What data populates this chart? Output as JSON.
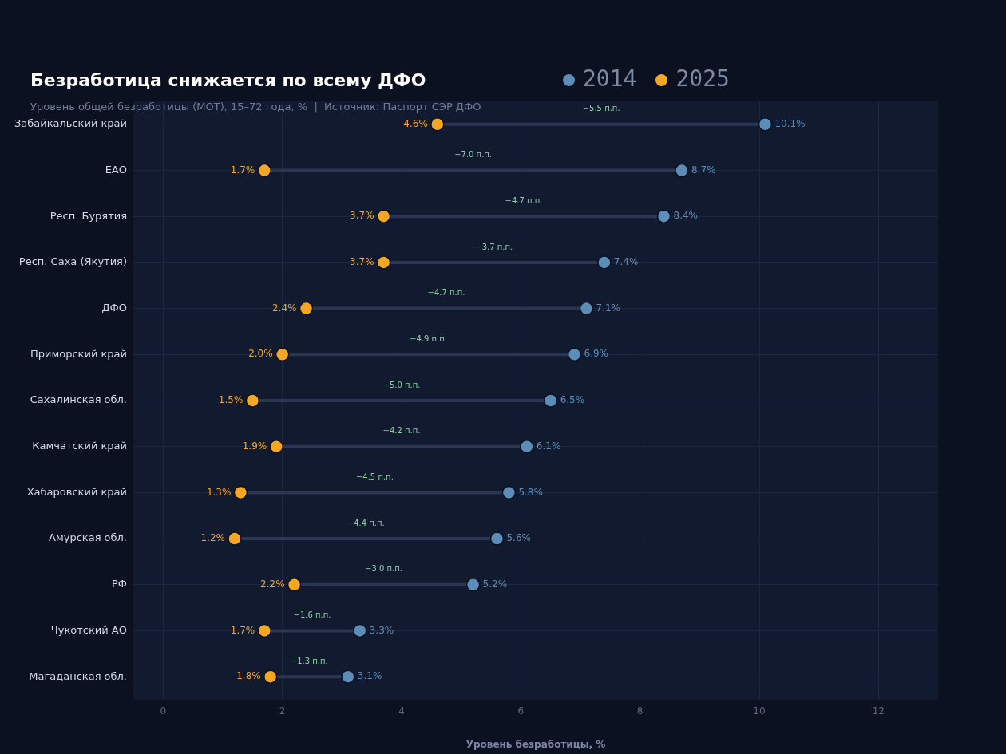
{
  "chart_data": {
    "type": "scatter",
    "orientation": "horizontal",
    "title": "Безработица снижается по всему ДФО",
    "subtitle": "Уровень общей безработицы (МОТ), 15–72 года, %  |  Источник: Паспорт СЭР ДФО",
    "xlabel": "Уровень безработицы, %",
    "categories": [
      "Забайкальский край",
      "ЕАО",
      "Респ. Бурятия",
      "Респ. Саха (Якутия)",
      "ДФО",
      "Приморский край",
      "Сахалинская обл.",
      "Камчатский край",
      "Хабаровский край",
      "Амурская обл.",
      "РФ",
      "Чукотский АО",
      "Магаданская обл."
    ],
    "series": [
      {
        "name": "2014",
        "color": "#5b8db8",
        "values": [
          10.1,
          8.7,
          8.4,
          7.4,
          7.1,
          6.9,
          6.5,
          6.1,
          5.8,
          5.6,
          5.2,
          3.3,
          3.1
        ],
        "value_labels": [
          "10.1%",
          "8.7%",
          "8.4%",
          "7.4%",
          "7.1%",
          "6.9%",
          "6.5%",
          "6.1%",
          "5.8%",
          "5.6%",
          "5.2%",
          "3.3%",
          "3.1%"
        ]
      },
      {
        "name": "2025",
        "color": "#f5a623",
        "values": [
          4.6,
          1.7,
          3.7,
          3.7,
          2.4,
          2.0,
          1.5,
          1.9,
          1.3,
          1.2,
          2.2,
          1.7,
          1.8
        ],
        "value_labels": [
          "4.6%",
          "1.7%",
          "3.7%",
          "3.7%",
          "2.4%",
          "2.0%",
          "1.5%",
          "1.9%",
          "1.3%",
          "1.2%",
          "2.2%",
          "1.7%",
          "1.8%"
        ]
      }
    ],
    "annotations": [
      "−5.5 п.п.",
      "−7.0 п.п.",
      "−4.7 п.п.",
      "−3.7 п.п.",
      "−4.7 п.п.",
      "−4.9 п.п.",
      "−5.0 п.п.",
      "−4.2 п.п.",
      "−4.5 п.п.",
      "−4.4 п.п.",
      "−3.0 п.п.",
      "−1.6 п.п.",
      "−1.3 п.п."
    ],
    "xlim": [
      -0.5,
      13
    ],
    "xticks": [
      0,
      2,
      4,
      6,
      8,
      10,
      12
    ],
    "grid": true,
    "legend": "top",
    "marker": "circle"
  }
}
